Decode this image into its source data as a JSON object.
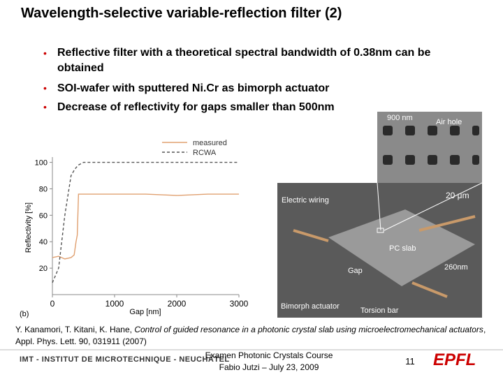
{
  "header": {
    "title": "Wavelength-selective variable-reflection filter (2)"
  },
  "bullets": [
    "Reflective filter with a theoretical spectral bandwidth of 0.38nm can be obtained",
    "SOI-wafer with sputtered Ni.Cr as bimorph actuator",
    "Decrease of reflectivity for gaps smaller than 500nm"
  ],
  "figure": {
    "chart_data": {
      "type": "line",
      "x_label": "Gap [nm]",
      "y_label": "Reflectivity [%]",
      "panel_label": "(b)",
      "x": [
        0,
        100,
        200,
        300,
        350,
        380,
        400,
        420,
        500,
        1000,
        1500,
        2000,
        2500,
        3000
      ],
      "series": [
        {
          "name": "measured",
          "color": "#e0a070",
          "dash": false,
          "values": [
            28,
            29,
            27,
            28,
            30,
            40,
            45,
            76,
            76,
            76,
            76,
            75,
            76,
            76
          ]
        },
        {
          "name": "RCWA",
          "color": "#555555",
          "dash": true,
          "values": [
            9,
            20,
            60,
            90,
            94,
            96,
            97,
            98,
            100,
            100,
            100,
            100,
            100,
            100
          ]
        }
      ],
      "xlim": [
        0,
        3000
      ],
      "xticks": [
        0,
        1000,
        2000,
        3000
      ],
      "ylim": [
        0,
        104
      ],
      "yticks": [
        20,
        40,
        60,
        80,
        100
      ]
    },
    "image_labels": [
      "900 nm",
      "Air hole",
      "20 μm",
      "Electric wiring",
      "PC slab",
      "Gap",
      "260nm",
      "Bimorph actuator",
      "Torsion bar"
    ]
  },
  "citation": {
    "authors": "Y. Kanamori, T. Kitani, K. Hane, ",
    "title": "Control of guided resonance in a photonic crystal slab using microelectromechanical actuators",
    "source": ", Appl. Phys. Lett. 90, 031911 (2007)"
  },
  "footer": {
    "institute": "IMT - INSTITUT DE MICROTECHNIQUE - NEUCHÂTEL",
    "course": "Examen Photonic Crystals Course",
    "author": "Fabio Jutzi – July 23, 2009",
    "page": "11",
    "logo": "EPFL"
  }
}
